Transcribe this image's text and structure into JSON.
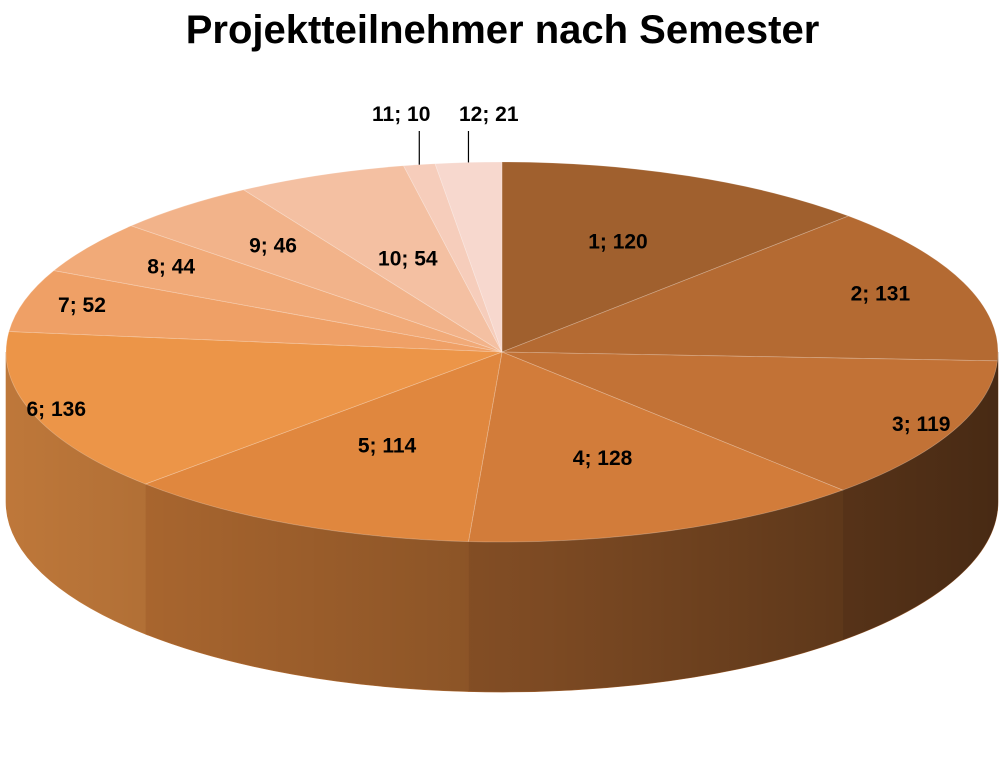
{
  "chart_data": {
    "type": "pie",
    "title": "Projektteilnehmer nach Semester",
    "categories": [
      "1",
      "2",
      "3",
      "4",
      "5",
      "6",
      "7",
      "8",
      "9",
      "10",
      "11",
      "12"
    ],
    "values": [
      120,
      131,
      119,
      128,
      114,
      136,
      52,
      44,
      46,
      54,
      10,
      21
    ],
    "labels": [
      "1; 120",
      "2; 131",
      "3; 119",
      "4; 128",
      "5; 114",
      "6; 136",
      "7; 52",
      "8; 44",
      "9; 46",
      "10; 54",
      "11; 10",
      "12; 21"
    ],
    "colors": [
      "#A0602E",
      "#B46A32",
      "#C27236",
      "#D27C3A",
      "#E0873E",
      "#EC9548",
      "#EFA066",
      "#F1AA78",
      "#F2B38A",
      "#F4C0A2",
      "#F6CDBB",
      "#F7D8CE"
    ],
    "legend": "none",
    "style": "3d"
  }
}
